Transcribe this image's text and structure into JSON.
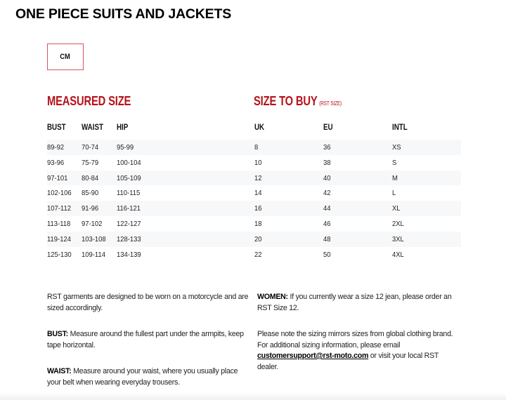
{
  "title": "ONE PIECE SUITS AND JACKETS",
  "unit_button": "CM",
  "measured": {
    "heading": "MEASURED SIZE",
    "columns": [
      "BUST",
      "WAIST",
      "HIP"
    ]
  },
  "buy": {
    "heading": "SIZE TO BUY",
    "note": "(RST SIZE)",
    "columns": [
      "UK",
      "EU",
      "INTL"
    ]
  },
  "rows": [
    [
      "89-92",
      "70-74",
      "95-99",
      "8",
      "36",
      "XS"
    ],
    [
      "93-96",
      "75-79",
      "100-104",
      "10",
      "38",
      "S"
    ],
    [
      "97-101",
      "80-84",
      "105-109",
      "12",
      "40",
      "M"
    ],
    [
      "102-106",
      "85-90",
      "110-115",
      "14",
      "42",
      "L"
    ],
    [
      "107-112",
      "91-96",
      "116-121",
      "16",
      "44",
      "XL"
    ],
    [
      "113-118",
      "97-102",
      "122-127",
      "18",
      "46",
      "2XL"
    ],
    [
      "119-124",
      "103-108",
      "128-133",
      "20",
      "48",
      "3XL"
    ],
    [
      "125-130",
      "109-114",
      "134-139",
      "22",
      "50",
      "4XL"
    ]
  ],
  "notes": {
    "intro": "RST garments are designed to be worn on a motorcycle and are sized accordingly.",
    "bust_label": "BUST:",
    "bust_text": " Measure around the fullest part under the armpits, keep tape horizontal.",
    "waist_label": "WAIST:",
    "waist_text": " Measure around your waist, where you usually place your belt when wearing everyday trousers.",
    "women_label": "WOMEN:",
    "women_text": " If you currently wear a size 12 jean, please order an RST Size 12.",
    "global_text": "Please note the sizing mirrors sizes from global clothing brand. For additional sizing information, please email ",
    "email": "customersupport@rst-moto.com",
    "global_end": " or visit your local RST dealer."
  },
  "colors": {
    "accent": "#b5121b",
    "border": "#d9535b",
    "row_alt": "#f7f8fa"
  }
}
